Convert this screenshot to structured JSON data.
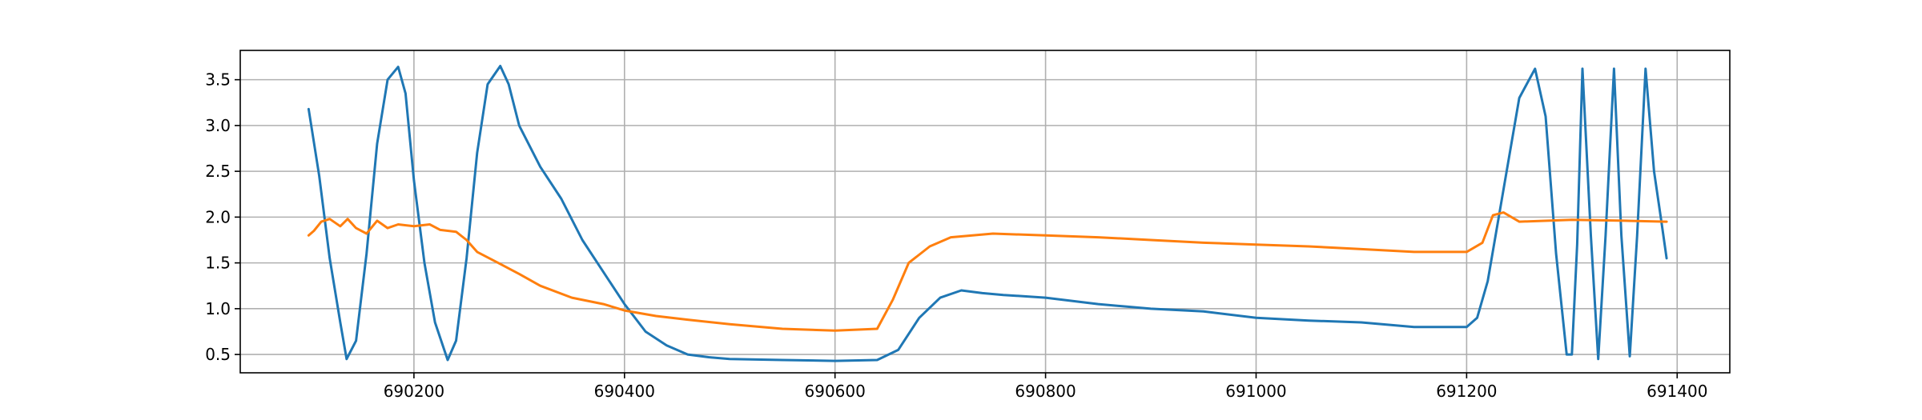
{
  "chart_data": {
    "type": "line",
    "title": "",
    "xlabel": "",
    "ylabel": "",
    "xlim": [
      690035,
      691450
    ],
    "ylim": [
      0.3,
      3.82
    ],
    "grid": true,
    "x_ticks": [
      690200,
      690400,
      690600,
      690800,
      691000,
      691200,
      691400
    ],
    "x_tick_labels": [
      "690200",
      "690400",
      "690600",
      "690800",
      "691000",
      "691200",
      "691400"
    ],
    "y_ticks": [
      0.5,
      1.0,
      1.5,
      2.0,
      2.5,
      3.0,
      3.5
    ],
    "y_tick_labels": [
      "0.5",
      "1.0",
      "1.5",
      "2.0",
      "2.5",
      "3.0",
      "3.5"
    ],
    "series": [
      {
        "color": "#1f77b4",
        "x": [
          690100,
          690110,
          690120,
          690130,
          690136,
          690145,
          690155,
          690165,
          690175,
          690185,
          690192,
          690200,
          690210,
          690220,
          690232,
          690240,
          690250,
          690260,
          690270,
          690282,
          690290,
          690300,
          690320,
          690340,
          690360,
          690380,
          690400,
          690420,
          690440,
          690460,
          690480,
          690500,
          690550,
          690600,
          690640,
          690660,
          690680,
          690700,
          690720,
          690740,
          690760,
          690800,
          690850,
          690900,
          690950,
          691000,
          691050,
          691100,
          691150,
          691200,
          691210,
          691220,
          691235,
          691250,
          691265,
          691275,
          691285,
          691295,
          691300,
          691305,
          691310,
          691318,
          691325,
          691332,
          691340,
          691347,
          691355,
          691362,
          691370,
          691378,
          691385,
          691390
        ],
        "y": [
          3.18,
          2.45,
          1.55,
          0.85,
          0.45,
          0.65,
          1.6,
          2.8,
          3.5,
          3.64,
          3.35,
          2.4,
          1.5,
          0.85,
          0.44,
          0.65,
          1.55,
          2.7,
          3.45,
          3.65,
          3.45,
          3.0,
          2.55,
          2.2,
          1.75,
          1.4,
          1.05,
          0.75,
          0.6,
          0.5,
          0.47,
          0.45,
          0.44,
          0.43,
          0.44,
          0.55,
          0.9,
          1.12,
          1.2,
          1.17,
          1.15,
          1.12,
          1.05,
          1.0,
          0.97,
          0.9,
          0.87,
          0.85,
          0.8,
          0.8,
          0.9,
          1.3,
          2.3,
          3.3,
          3.62,
          3.1,
          1.6,
          0.5,
          0.5,
          1.7,
          3.62,
          1.8,
          0.45,
          1.8,
          3.62,
          1.8,
          0.48,
          1.8,
          3.62,
          2.5,
          1.95,
          1.55
        ]
      },
      {
        "color": "#ff7f0e",
        "x": [
          690100,
          690105,
          690112,
          690120,
          690130,
          690137,
          690145,
          690155,
          690165,
          690175,
          690185,
          690200,
          690215,
          690225,
          690240,
          690250,
          690260,
          690280,
          690300,
          690320,
          690350,
          690380,
          690400,
          690430,
          690460,
          690500,
          690550,
          690600,
          690640,
          690655,
          690670,
          690690,
          690710,
          690750,
          690800,
          690850,
          690900,
          690950,
          691000,
          691050,
          691100,
          691150,
          691200,
          691215,
          691225,
          691235,
          691250,
          691300,
          691350,
          691390
        ],
        "y": [
          1.8,
          1.85,
          1.95,
          1.98,
          1.9,
          1.98,
          1.88,
          1.82,
          1.96,
          1.88,
          1.92,
          1.9,
          1.92,
          1.86,
          1.84,
          1.75,
          1.62,
          1.5,
          1.38,
          1.25,
          1.12,
          1.05,
          0.98,
          0.92,
          0.88,
          0.83,
          0.78,
          0.76,
          0.78,
          1.1,
          1.5,
          1.68,
          1.78,
          1.82,
          1.8,
          1.78,
          1.75,
          1.72,
          1.7,
          1.68,
          1.65,
          1.62,
          1.62,
          1.72,
          2.02,
          2.05,
          1.95,
          1.97,
          1.96,
          1.95
        ]
      }
    ]
  }
}
